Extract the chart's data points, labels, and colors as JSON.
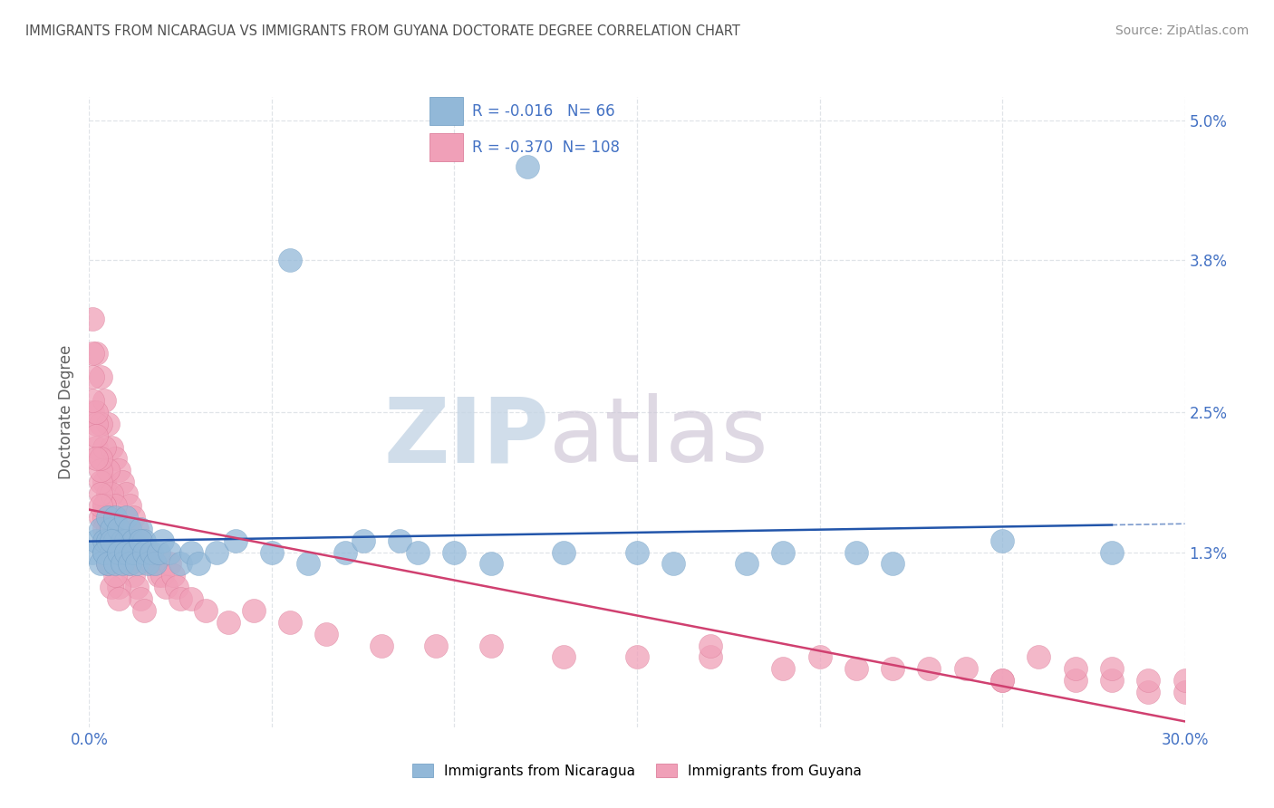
{
  "title": "IMMIGRANTS FROM NICARAGUA VS IMMIGRANTS FROM GUYANA DOCTORATE DEGREE CORRELATION CHART",
  "source": "Source: ZipAtlas.com",
  "ylabel": "Doctorate Degree",
  "xlim": [
    0.0,
    0.3
  ],
  "ylim": [
    -0.002,
    0.052
  ],
  "ytick_positions": [
    0.013,
    0.025,
    0.038,
    0.05
  ],
  "ytick_labels": [
    "1.3%",
    "2.5%",
    "3.8%",
    "5.0%"
  ],
  "xtick_positions": [
    0.0,
    0.05,
    0.1,
    0.15,
    0.2,
    0.25,
    0.3
  ],
  "xtick_labels": [
    "0.0%",
    "",
    "",
    "",
    "",
    "",
    "30.0%"
  ],
  "watermark_zip": "ZIP",
  "watermark_atlas": "atlas",
  "watermark_color": "#c8d8e8",
  "background_color": "#ffffff",
  "grid_color": "#e0e4e8",
  "title_color": "#505050",
  "axis_label_color": "#4472c4",
  "nicaragua_color": "#92b8d8",
  "nicaragua_edge": "#6898c0",
  "guyana_color": "#f0a0b8",
  "guyana_edge": "#d87090",
  "blue_line_color": "#2255aa",
  "pink_line_color": "#d04070",
  "legend_border_color": "#c0c8d0",
  "nicaragua_R": -0.016,
  "nicaragua_N": 66,
  "guyana_R": -0.37,
  "guyana_N": 108,
  "nicaragua_x": [
    0.001,
    0.002,
    0.003,
    0.004,
    0.004,
    0.005,
    0.005,
    0.006,
    0.006,
    0.007,
    0.007,
    0.008,
    0.008,
    0.009,
    0.009,
    0.01,
    0.01,
    0.011,
    0.011,
    0.012,
    0.013,
    0.014,
    0.015,
    0.003,
    0.004,
    0.005,
    0.006,
    0.007,
    0.008,
    0.009,
    0.01,
    0.011,
    0.012,
    0.013,
    0.014,
    0.015,
    0.016,
    0.017,
    0.018,
    0.019,
    0.02,
    0.022,
    0.025,
    0.028,
    0.03,
    0.035,
    0.04,
    0.05,
    0.06,
    0.07,
    0.085,
    0.1,
    0.055,
    0.075,
    0.09,
    0.11,
    0.13,
    0.15,
    0.19,
    0.22,
    0.25,
    0.28,
    0.18,
    0.21,
    0.16,
    0.12
  ],
  "nicaragua_y": [
    0.013,
    0.014,
    0.015,
    0.013,
    0.014,
    0.016,
    0.014,
    0.015,
    0.013,
    0.014,
    0.016,
    0.013,
    0.015,
    0.014,
    0.013,
    0.016,
    0.014,
    0.015,
    0.013,
    0.014,
    0.013,
    0.015,
    0.014,
    0.012,
    0.013,
    0.012,
    0.014,
    0.012,
    0.013,
    0.012,
    0.013,
    0.012,
    0.013,
    0.012,
    0.014,
    0.013,
    0.012,
    0.013,
    0.012,
    0.013,
    0.014,
    0.013,
    0.012,
    0.013,
    0.012,
    0.013,
    0.014,
    0.013,
    0.012,
    0.013,
    0.014,
    0.013,
    0.038,
    0.014,
    0.013,
    0.012,
    0.013,
    0.013,
    0.013,
    0.012,
    0.014,
    0.013,
    0.012,
    0.013,
    0.012,
    0.046
  ],
  "guyana_x": [
    0.001,
    0.001,
    0.002,
    0.002,
    0.003,
    0.003,
    0.004,
    0.004,
    0.005,
    0.005,
    0.006,
    0.006,
    0.007,
    0.007,
    0.008,
    0.008,
    0.009,
    0.009,
    0.01,
    0.01,
    0.011,
    0.011,
    0.012,
    0.013,
    0.014,
    0.015,
    0.016,
    0.017,
    0.018,
    0.019,
    0.02,
    0.021,
    0.022,
    0.023,
    0.024,
    0.025,
    0.003,
    0.004,
    0.005,
    0.006,
    0.007,
    0.008,
    0.009,
    0.01,
    0.011,
    0.012,
    0.013,
    0.014,
    0.015,
    0.003,
    0.004,
    0.005,
    0.006,
    0.007,
    0.008,
    0.003,
    0.004,
    0.005,
    0.006,
    0.002,
    0.003,
    0.004,
    0.028,
    0.032,
    0.038,
    0.045,
    0.055,
    0.065,
    0.08,
    0.095,
    0.11,
    0.13,
    0.15,
    0.17,
    0.19,
    0.21,
    0.23,
    0.25,
    0.27,
    0.29,
    0.001,
    0.002,
    0.003,
    0.004,
    0.005,
    0.006,
    0.007,
    0.008,
    0.001,
    0.002,
    0.003,
    0.004,
    0.005,
    0.001,
    0.002,
    0.003,
    0.17,
    0.22,
    0.25,
    0.28,
    0.3,
    0.27,
    0.3,
    0.28,
    0.29,
    0.2,
    0.24,
    0.26
  ],
  "guyana_y": [
    0.033,
    0.025,
    0.03,
    0.022,
    0.028,
    0.021,
    0.026,
    0.019,
    0.024,
    0.018,
    0.022,
    0.016,
    0.021,
    0.015,
    0.02,
    0.014,
    0.019,
    0.013,
    0.018,
    0.013,
    0.017,
    0.012,
    0.016,
    0.015,
    0.014,
    0.013,
    0.013,
    0.012,
    0.012,
    0.011,
    0.011,
    0.01,
    0.012,
    0.011,
    0.01,
    0.009,
    0.024,
    0.022,
    0.02,
    0.018,
    0.017,
    0.015,
    0.014,
    0.013,
    0.012,
    0.011,
    0.01,
    0.009,
    0.008,
    0.019,
    0.017,
    0.015,
    0.013,
    0.012,
    0.01,
    0.016,
    0.014,
    0.012,
    0.01,
    0.024,
    0.02,
    0.016,
    0.009,
    0.008,
    0.007,
    0.008,
    0.007,
    0.006,
    0.005,
    0.005,
    0.005,
    0.004,
    0.004,
    0.004,
    0.003,
    0.003,
    0.003,
    0.002,
    0.002,
    0.001,
    0.03,
    0.025,
    0.021,
    0.017,
    0.015,
    0.013,
    0.011,
    0.009,
    0.028,
    0.023,
    0.018,
    0.015,
    0.012,
    0.026,
    0.021,
    0.017,
    0.005,
    0.003,
    0.002,
    0.002,
    0.001,
    0.003,
    0.002,
    0.003,
    0.002,
    0.004,
    0.003,
    0.004
  ]
}
